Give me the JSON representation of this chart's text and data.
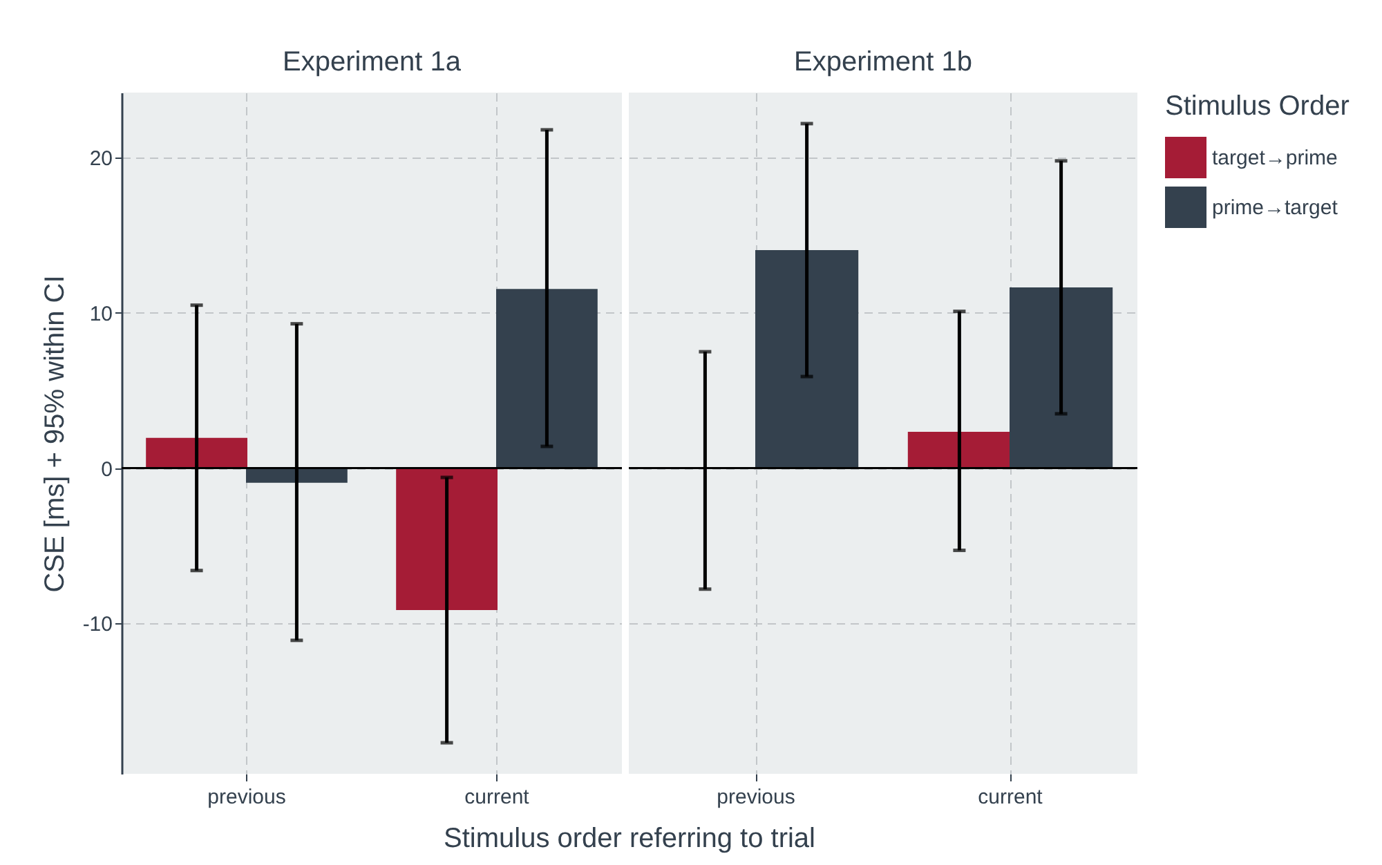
{
  "chart_data": [
    {
      "type": "bar",
      "title": "Experiment 1a",
      "ylabel": "CSE [ms] + 95% within CI",
      "xlabel": "Stimulus order referring to trial",
      "categories": [
        "previous",
        "current"
      ],
      "series": [
        {
          "color": "#a51c36",
          "values": [
            1.9,
            -9.1
          ],
          "errors": [
            [
              -6.6,
              10.5
            ],
            [
              -17.7,
              -0.6
            ]
          ]
        },
        {
          "color": "#34414e",
          "values": [
            -0.9,
            11.5
          ],
          "errors": [
            [
              -11.1,
              9.3
            ],
            [
              1.4,
              21.8
            ]
          ]
        }
      ],
      "ylim": [
        -19.7,
        24.2
      ],
      "yticks": [
        -10,
        0,
        10,
        20
      ],
      "grid": true,
      "ref_lines": [
        {
          "axis": "y",
          "value": 0
        }
      ]
    },
    {
      "type": "bar",
      "title": "Experiment 1b",
      "legend_title": "Stimulus Order",
      "legend": "right",
      "categories": [
        "previous",
        "current"
      ],
      "series": [
        {
          "name": "target→prime",
          "color": "#a51c36",
          "values": [
            0,
            2.3
          ],
          "errors": [
            [
              -7.8,
              7.5
            ],
            [
              -5.3,
              10.1
            ]
          ]
        },
        {
          "name": "prime→target",
          "color": "#34414e",
          "values": [
            14.0,
            11.6
          ],
          "errors": [
            [
              5.9,
              22.2
            ],
            [
              3.5,
              19.8
            ]
          ]
        }
      ],
      "ylim": [
        -19.7,
        24.2
      ],
      "yticks": [
        -10,
        0,
        10,
        20
      ],
      "grid": true,
      "tick_labels": "x",
      "ref_lines": [
        {
          "axis": "y",
          "value": 0
        }
      ]
    }
  ]
}
